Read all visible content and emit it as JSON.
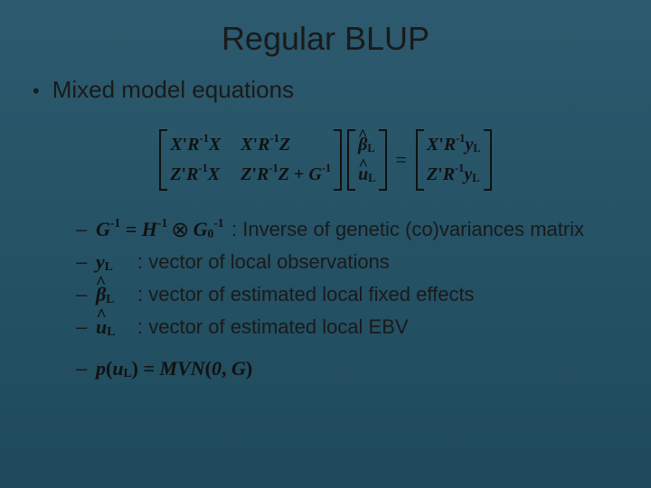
{
  "colors": {
    "bg_top": "#2d5a6e",
    "bg_bottom": "#1e4a5c",
    "text": "#1a1a1a"
  },
  "typography": {
    "title_fontsize": 36,
    "body_fontsize": 26,
    "sub_fontsize": 22,
    "math_font": "Times New Roman"
  },
  "title": "Regular BLUP",
  "bullet": {
    "marker": "•",
    "text": "Mixed model equations"
  },
  "matrix_equation": {
    "lhs_matrix": [
      [
        "X'R⁻¹X",
        "X'R⁻¹Z"
      ],
      [
        "Z'R⁻¹X",
        "Z'R⁻¹Z + G⁻¹"
      ]
    ],
    "vec": [
      "β̂_L",
      "û_L"
    ],
    "rhs": [
      "X'R⁻¹y_L",
      "Z'R⁻¹y_L"
    ]
  },
  "definitions": [
    {
      "symbol_tex": "G⁻¹ = H⁻¹ ⊗ G₀⁻¹",
      "desc": ": Inverse of genetic (co)variances matrix"
    },
    {
      "symbol_tex": "y_L",
      "desc": ": vector of local observations"
    },
    {
      "symbol_tex": "β̂_L",
      "desc": ": vector of estimated local fixed effects"
    },
    {
      "symbol_tex": "û_L",
      "desc": ": vector of estimated local EBV"
    }
  ],
  "distribution": {
    "tex": "p(u_L) = MVN(0, G)"
  },
  "dash": "–"
}
